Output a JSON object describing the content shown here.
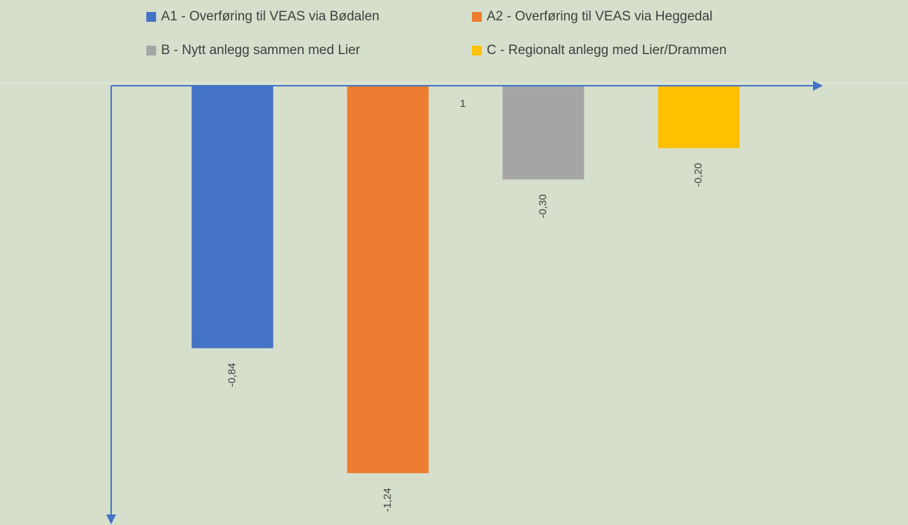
{
  "chart_data": {
    "type": "bar",
    "categories": [
      "1"
    ],
    "series": [
      {
        "name": "A1 - Overføring til VEAS via Bødalen",
        "color": "#4472c4",
        "values": [
          -0.84
        ],
        "value_labels": [
          "-0,84"
        ]
      },
      {
        "name": "A2 - Overføring til VEAS via Heggedal",
        "color": "#ed7d31",
        "values": [
          -1.24
        ],
        "value_labels": [
          "-1,24"
        ]
      },
      {
        "name": "B - Nytt anlegg sammen med Lier",
        "color": "#a5a5a5",
        "values": [
          -0.3
        ],
        "value_labels": [
          "-0,30"
        ]
      },
      {
        "name": "C - Regionalt anlegg med Lier/Drammen",
        "color": "#ffc000",
        "values": [
          -0.2
        ],
        "value_labels": [
          "-0,20"
        ]
      }
    ],
    "ylim": [
      -1.39,
      0
    ],
    "legend": "top"
  }
}
